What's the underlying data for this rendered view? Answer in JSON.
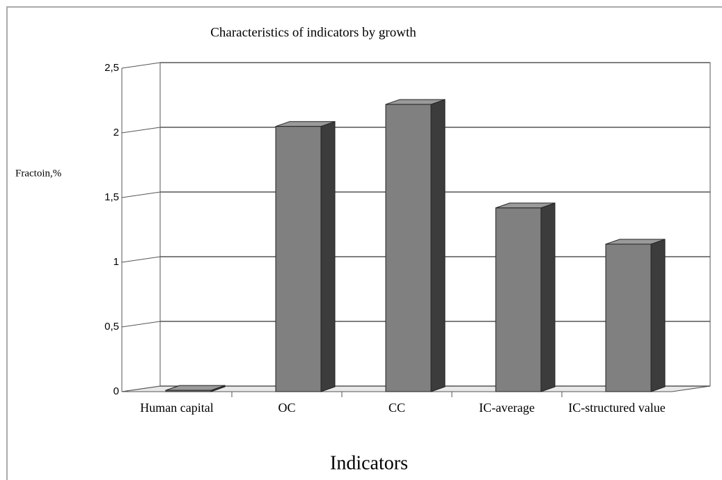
{
  "chart_data": {
    "type": "bar3d",
    "title": "Characteristics of indicators by growth",
    "y_label": "Fractoin,%",
    "x_label": "Indicators",
    "categories": [
      "Human capital",
      "OC",
      "CC",
      "IC-average",
      "IC-structured value"
    ],
    "values": [
      0.01,
      2.05,
      2.22,
      1.42,
      1.14
    ],
    "color": "#808080",
    "ylim": [
      0,
      2.5
    ],
    "yticks": [
      0,
      {
        "value": 0.5,
        "label": "0,5"
      },
      1,
      {
        "value": 1.5,
        "label": "1,5"
      },
      2,
      {
        "value": 2.5,
        "label": "2,5"
      }
    ],
    "grid": true
  }
}
